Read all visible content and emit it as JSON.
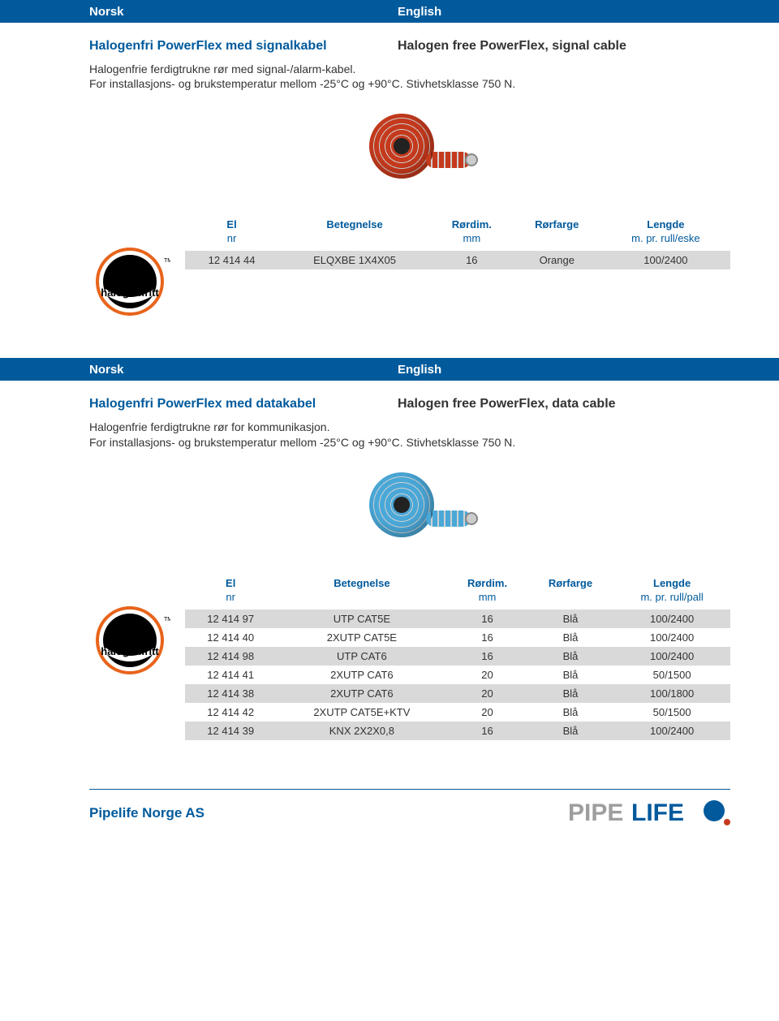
{
  "colors": {
    "brand_blue": "#005a9c",
    "text": "#333333",
    "row_shade": "#d9d9d9",
    "orange_coil": "#c53a1d",
    "blue_coil": "#4aa8d8",
    "badge_black": "#000000",
    "badge_orange": "#e8641b",
    "white": "#ffffff"
  },
  "langbar": {
    "left": "Norsk",
    "right": "English"
  },
  "section1": {
    "title_no": "Halogenfri PowerFlex med signalkabel",
    "title_en": "Halogen free PowerFlex, signal cable",
    "desc_line1": "Halogenfrie ferdigtrukne rør med signal-/alarm-kabel.",
    "desc_line2": "For installasjons- og brukstemperatur mellom -25°C og +90°C. Stivhetsklasse 750 N.",
    "table": {
      "headers": {
        "c1": "El",
        "c2": "Betegnelse",
        "c3": "Rørdim.",
        "c4": "Rørfarge",
        "c5": "Lengde"
      },
      "sub": {
        "c1": "nr",
        "c2": "",
        "c3": "mm",
        "c4": "",
        "c5": "m. pr. rull/eske"
      },
      "rows": [
        {
          "c1": "12 414 44",
          "c2": "ELQXBE 1X4X05",
          "c3": "16",
          "c4": "Orange",
          "c5": "100/2400",
          "shade": true
        }
      ]
    }
  },
  "section2": {
    "title_no": "Halogenfri PowerFlex med datakabel",
    "title_en": "Halogen free PowerFlex, data cable",
    "desc_line1": "Halogenfrie ferdigtrukne rør for kommunikasjon.",
    "desc_line2": "For installasjons- og brukstemperatur mellom -25°C og +90°C. Stivhetsklasse 750 N.",
    "table": {
      "headers": {
        "c1": "El",
        "c2": "Betegnelse",
        "c3": "Rørdim.",
        "c4": "Rørfarge",
        "c5": "Lengde"
      },
      "sub": {
        "c1": "nr",
        "c2": "",
        "c3": "mm",
        "c4": "",
        "c5": "m. pr. rull/pall"
      },
      "rows": [
        {
          "c1": "12 414 97",
          "c2": "UTP CAT5E",
          "c3": "16",
          "c4": "Blå",
          "c5": "100/2400",
          "shade": true
        },
        {
          "c1": "12 414 40",
          "c2": "2XUTP CAT5E",
          "c3": "16",
          "c4": "Blå",
          "c5": "100/2400",
          "shade": false
        },
        {
          "c1": "12 414 98",
          "c2": "UTP CAT6",
          "c3": "16",
          "c4": "Blå",
          "c5": "100/2400",
          "shade": true
        },
        {
          "c1": "12 414 41",
          "c2": "2XUTP CAT6",
          "c3": "20",
          "c4": "Blå",
          "c5": "50/1500",
          "shade": false
        },
        {
          "c1": "12 414 38",
          "c2": "2XUTP CAT6",
          "c3": "20",
          "c4": "Blå",
          "c5": "100/1800",
          "shade": true
        },
        {
          "c1": "12 414 42",
          "c2": "2XUTP CAT5E+KTV",
          "c3": "20",
          "c4": "Blå",
          "c5": "50/1500",
          "shade": false
        },
        {
          "c1": "12 414 39",
          "c2": "KNX 2X2X0,8",
          "c3": "16",
          "c4": "Blå",
          "c5": "100/2400",
          "shade": true
        }
      ]
    }
  },
  "badge": {
    "text": "halogenfritt",
    "tm": "TM"
  },
  "footer": {
    "company": "Pipelife Norge AS",
    "logo_text1": "PIPE",
    "logo_text2": "LIFE"
  }
}
